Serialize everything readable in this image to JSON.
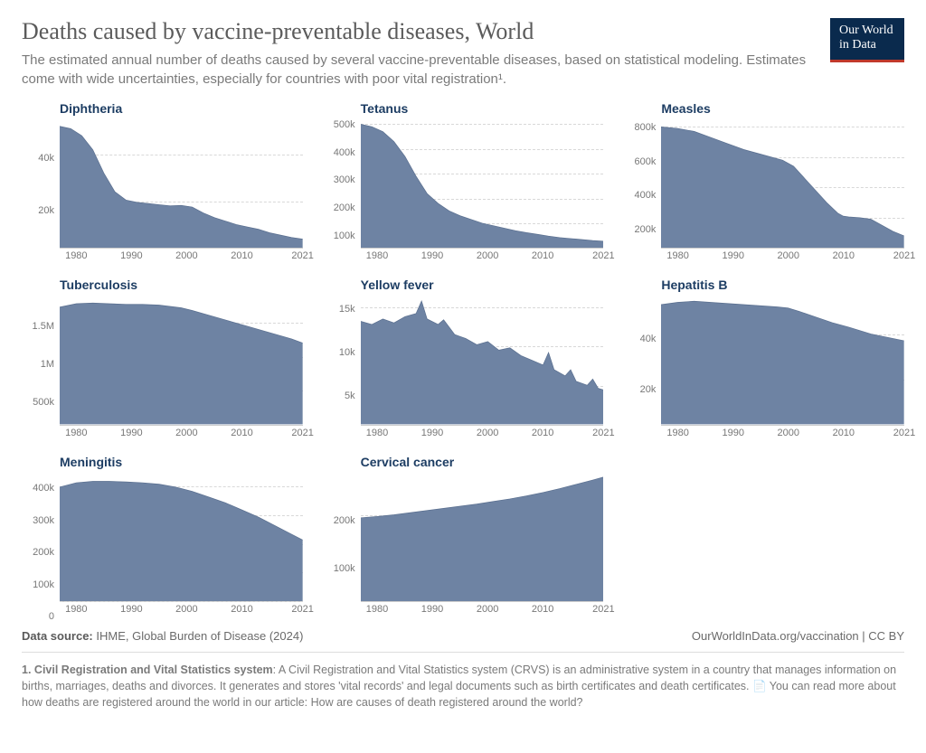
{
  "header": {
    "title": "Deaths caused by vaccine-preventable diseases, World",
    "subtitle": "The estimated annual number of deaths caused by several vaccine-preventable diseases, based on statistical modeling. Estimates come with wide uncertainties, especially for countries with poor vital registration¹.",
    "logo_line1": "Our World",
    "logo_line2": "in Data"
  },
  "style": {
    "area_fill": "#6e83a3",
    "area_stroke": "#5a6f8f",
    "grid_color": "#e8e8e8",
    "title_color": "#1d3d63",
    "background": "#ffffff",
    "axis_text_color": "#777777",
    "title_fontsize": 14,
    "axis_fontsize": 11
  },
  "x_axis": {
    "min": 1977,
    "max": 2021,
    "ticks": [
      1980,
      1990,
      2000,
      2010,
      2021
    ]
  },
  "panels": [
    {
      "title": "Diphtheria",
      "ymax": 55000,
      "yticks": [
        {
          "v": 20000,
          "l": "20k"
        },
        {
          "v": 40000,
          "l": "40k"
        }
      ],
      "series": [
        [
          1977,
          52000
        ],
        [
          1979,
          51000
        ],
        [
          1981,
          48000
        ],
        [
          1983,
          42000
        ],
        [
          1985,
          32000
        ],
        [
          1987,
          24000
        ],
        [
          1989,
          20500
        ],
        [
          1991,
          19500
        ],
        [
          1993,
          19000
        ],
        [
          1995,
          18500
        ],
        [
          1997,
          18000
        ],
        [
          1999,
          18200
        ],
        [
          2001,
          17500
        ],
        [
          2003,
          15000
        ],
        [
          2005,
          13000
        ],
        [
          2007,
          11500
        ],
        [
          2009,
          10000
        ],
        [
          2011,
          9000
        ],
        [
          2013,
          8000
        ],
        [
          2015,
          6500
        ],
        [
          2017,
          5500
        ],
        [
          2019,
          4500
        ],
        [
          2021,
          3800
        ]
      ]
    },
    {
      "title": "Tetanus",
      "ymax": 520000,
      "yticks": [
        {
          "v": 100000,
          "l": "100k"
        },
        {
          "v": 200000,
          "l": "200k"
        },
        {
          "v": 300000,
          "l": "300k"
        },
        {
          "v": 400000,
          "l": "400k"
        },
        {
          "v": 500000,
          "l": "500k"
        }
      ],
      "series": [
        [
          1977,
          500000
        ],
        [
          1979,
          490000
        ],
        [
          1981,
          470000
        ],
        [
          1983,
          430000
        ],
        [
          1985,
          370000
        ],
        [
          1987,
          290000
        ],
        [
          1989,
          220000
        ],
        [
          1991,
          180000
        ],
        [
          1993,
          150000
        ],
        [
          1995,
          130000
        ],
        [
          1997,
          115000
        ],
        [
          1999,
          100000
        ],
        [
          2001,
          90000
        ],
        [
          2003,
          80000
        ],
        [
          2005,
          70000
        ],
        [
          2007,
          62000
        ],
        [
          2009,
          55000
        ],
        [
          2011,
          48000
        ],
        [
          2013,
          42000
        ],
        [
          2015,
          38000
        ],
        [
          2017,
          34000
        ],
        [
          2019,
          30000
        ],
        [
          2021,
          27000
        ]
      ]
    },
    {
      "title": "Measles",
      "ymax": 850000,
      "yticks": [
        {
          "v": 200000,
          "l": "200k"
        },
        {
          "v": 400000,
          "l": "400k"
        },
        {
          "v": 600000,
          "l": "600k"
        },
        {
          "v": 800000,
          "l": "800k"
        }
      ],
      "series": [
        [
          1977,
          800000
        ],
        [
          1980,
          790000
        ],
        [
          1983,
          770000
        ],
        [
          1986,
          730000
        ],
        [
          1989,
          690000
        ],
        [
          1992,
          650000
        ],
        [
          1995,
          620000
        ],
        [
          1997,
          600000
        ],
        [
          1999,
          580000
        ],
        [
          2001,
          540000
        ],
        [
          2003,
          460000
        ],
        [
          2005,
          380000
        ],
        [
          2007,
          300000
        ],
        [
          2009,
          230000
        ],
        [
          2010,
          210000
        ],
        [
          2011,
          205000
        ],
        [
          2013,
          200000
        ],
        [
          2015,
          190000
        ],
        [
          2017,
          150000
        ],
        [
          2019,
          110000
        ],
        [
          2021,
          80000
        ]
      ]
    },
    {
      "title": "Tuberculosis",
      "ymax": 1900000,
      "yticks": [
        {
          "v": 500000,
          "l": "500k"
        },
        {
          "v": 1000000,
          "l": "1M"
        },
        {
          "v": 1500000,
          "l": "1.5M"
        }
      ],
      "series": [
        [
          1977,
          1730000
        ],
        [
          1980,
          1780000
        ],
        [
          1983,
          1790000
        ],
        [
          1986,
          1780000
        ],
        [
          1989,
          1770000
        ],
        [
          1992,
          1770000
        ],
        [
          1995,
          1760000
        ],
        [
          1997,
          1740000
        ],
        [
          1999,
          1720000
        ],
        [
          2001,
          1680000
        ],
        [
          2004,
          1610000
        ],
        [
          2007,
          1540000
        ],
        [
          2010,
          1470000
        ],
        [
          2013,
          1400000
        ],
        [
          2016,
          1330000
        ],
        [
          2019,
          1260000
        ],
        [
          2021,
          1200000
        ]
      ]
    },
    {
      "title": "Yellow fever",
      "ymax": 16500,
      "yticks": [
        {
          "v": 5000,
          "l": "5k"
        },
        {
          "v": 10000,
          "l": "10k"
        },
        {
          "v": 15000,
          "l": "15k"
        }
      ],
      "series": [
        [
          1977,
          13200
        ],
        [
          1979,
          12800
        ],
        [
          1981,
          13500
        ],
        [
          1983,
          13000
        ],
        [
          1985,
          13800
        ],
        [
          1987,
          14200
        ],
        [
          1988,
          15800
        ],
        [
          1989,
          13500
        ],
        [
          1991,
          12800
        ],
        [
          1992,
          13400
        ],
        [
          1994,
          11500
        ],
        [
          1996,
          11000
        ],
        [
          1998,
          10200
        ],
        [
          2000,
          10600
        ],
        [
          2002,
          9500
        ],
        [
          2004,
          9800
        ],
        [
          2006,
          8800
        ],
        [
          2008,
          8200
        ],
        [
          2010,
          7600
        ],
        [
          2011,
          9200
        ],
        [
          2012,
          7000
        ],
        [
          2014,
          6200
        ],
        [
          2015,
          7000
        ],
        [
          2016,
          5500
        ],
        [
          2018,
          5000
        ],
        [
          2019,
          5800
        ],
        [
          2020,
          4600
        ],
        [
          2021,
          4400
        ]
      ]
    },
    {
      "title": "Hepatitis B",
      "ymax": 57000,
      "yticks": [
        {
          "v": 20000,
          "l": "20k"
        },
        {
          "v": 40000,
          "l": "40k"
        }
      ],
      "series": [
        [
          1977,
          53000
        ],
        [
          1980,
          54000
        ],
        [
          1983,
          54500
        ],
        [
          1986,
          54000
        ],
        [
          1989,
          53500
        ],
        [
          1992,
          53000
        ],
        [
          1995,
          52500
        ],
        [
          1998,
          52000
        ],
        [
          2000,
          51500
        ],
        [
          2002,
          50000
        ],
        [
          2005,
          47500
        ],
        [
          2008,
          45000
        ],
        [
          2011,
          43000
        ],
        [
          2013,
          41500
        ],
        [
          2015,
          40000
        ],
        [
          2017,
          39000
        ],
        [
          2019,
          38000
        ],
        [
          2021,
          37000
        ]
      ]
    },
    {
      "title": "Meningitis",
      "ymax": 450000,
      "yticks": [
        {
          "v": 0,
          "l": "0"
        },
        {
          "v": 100000,
          "l": "100k"
        },
        {
          "v": 200000,
          "l": "200k"
        },
        {
          "v": 300000,
          "l": "300k"
        },
        {
          "v": 400000,
          "l": "400k"
        }
      ],
      "series": [
        [
          1977,
          400000
        ],
        [
          1980,
          415000
        ],
        [
          1983,
          420000
        ],
        [
          1986,
          420000
        ],
        [
          1989,
          418000
        ],
        [
          1992,
          415000
        ],
        [
          1995,
          410000
        ],
        [
          1998,
          400000
        ],
        [
          2001,
          385000
        ],
        [
          2004,
          365000
        ],
        [
          2007,
          345000
        ],
        [
          2010,
          320000
        ],
        [
          2013,
          295000
        ],
        [
          2016,
          265000
        ],
        [
          2019,
          235000
        ],
        [
          2021,
          215000
        ]
      ]
    },
    {
      "title": "Cervical cancer",
      "ymax": 300000,
      "yticks": [
        {
          "v": 100000,
          "l": "100k"
        },
        {
          "v": 200000,
          "l": "200k"
        }
      ],
      "series": [
        [
          1977,
          195000
        ],
        [
          1980,
          198000
        ],
        [
          1983,
          202000
        ],
        [
          1986,
          207000
        ],
        [
          1989,
          212000
        ],
        [
          1992,
          217000
        ],
        [
          1995,
          222000
        ],
        [
          1998,
          227000
        ],
        [
          2001,
          233000
        ],
        [
          2004,
          239000
        ],
        [
          2007,
          246000
        ],
        [
          2010,
          254000
        ],
        [
          2013,
          263000
        ],
        [
          2016,
          273000
        ],
        [
          2019,
          283000
        ],
        [
          2021,
          290000
        ]
      ]
    }
  ],
  "footer": {
    "source_label": "Data source:",
    "source_text": "IHME, Global Burden of Disease (2024)",
    "attribution": "OurWorldInData.org/vaccination | CC BY",
    "footnote_num": "1.",
    "footnote_bold": "Civil Registration and Vital Statistics system",
    "footnote_text": ": A Civil Registration and Vital Statistics system (CRVS) is an administrative system in a country that manages information on births, marriages, deaths and divorces. It generates and stores 'vital records' and legal documents such as birth certificates and death certificates. ",
    "footnote_text2": " You can read more about how deaths are registered around the world in our article: How are causes of death registered around the world?"
  }
}
